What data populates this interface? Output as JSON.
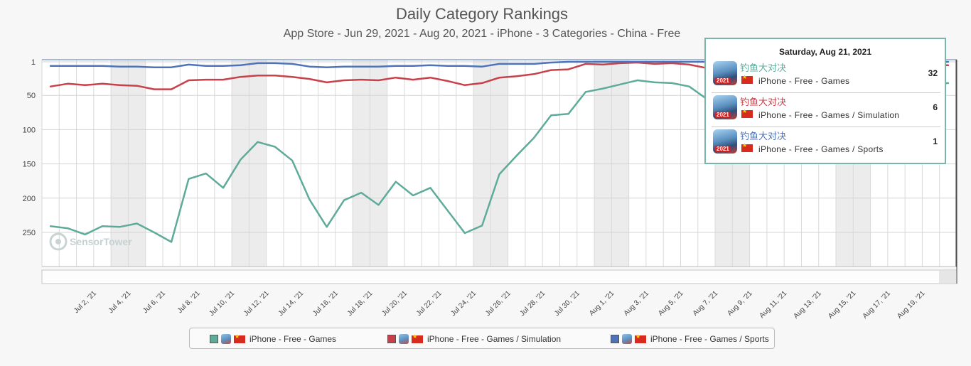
{
  "chart_data": {
    "type": "line",
    "title": "Daily Category Rankings",
    "subtitle": "App Store - Jun 29, 2021 - Aug 20, 2021 - iPhone - 3 Categories - China - Free",
    "y_reversed": true,
    "ylim": [
      1,
      300
    ],
    "y_ticks": [
      1,
      50,
      100,
      150,
      200,
      250
    ],
    "x_tick_labels": [
      "Jul 2, '21",
      "Jul 4, '21",
      "Jul 6, '21",
      "Jul 8, '21",
      "Jul 10, '21",
      "Jul 12, '21",
      "Jul 14, '21",
      "Jul 16, '21",
      "Jul 18, '21",
      "Jul 20, '21",
      "Jul 22, '21",
      "Jul 24, '21",
      "Jul 26, '21",
      "Jul 28, '21",
      "Jul 30, '21",
      "Aug 1, '21",
      "Aug 3, '21",
      "Aug 5, '21",
      "Aug 7, '21",
      "Aug 9, '21",
      "Aug 11, '21",
      "Aug 13, '21",
      "Aug 15, '21",
      "Aug 17, '21",
      "Aug 19, '21"
    ],
    "x_start": "Jun 29, '21",
    "x_end": "Aug 21, '21",
    "grid": true,
    "series": [
      {
        "name": "iPhone - Free - Games",
        "color": "#5fab9a",
        "values": [
          241,
          244,
          253,
          241,
          242,
          237,
          250,
          264,
          172,
          164,
          185,
          144,
          118,
          125,
          145,
          202,
          242,
          203,
          192,
          210,
          176,
          196,
          185,
          218,
          251,
          240,
          165,
          138,
          112,
          79,
          77,
          45,
          40,
          34,
          28,
          31,
          32,
          37,
          55,
          70,
          85,
          83,
          62,
          55,
          50,
          48,
          45,
          42,
          40,
          38,
          36,
          34,
          32
        ]
      },
      {
        "name": "iPhone - Free - Games / Simulation",
        "color": "#c8404a",
        "values": [
          37,
          33,
          35,
          33,
          35,
          36,
          41,
          41,
          28,
          27,
          27,
          23,
          21,
          21,
          23,
          26,
          31,
          28,
          27,
          28,
          24,
          27,
          24,
          29,
          35,
          32,
          24,
          22,
          19,
          13,
          12,
          4,
          5,
          3,
          2,
          4,
          3,
          5,
          10,
          14,
          18,
          17,
          12,
          10,
          9,
          8,
          8,
          7,
          7,
          6,
          6,
          6,
          6
        ]
      },
      {
        "name": "iPhone - Free - Games / Sports",
        "color": "#4f73b8",
        "values": [
          7,
          7,
          7,
          7,
          8,
          8,
          9,
          9,
          5,
          7,
          7,
          6,
          3,
          3,
          4,
          8,
          9,
          8,
          8,
          8,
          7,
          7,
          6,
          7,
          7,
          8,
          4,
          4,
          4,
          2,
          1,
          1,
          1,
          1,
          1,
          1,
          1,
          1,
          1,
          1,
          1,
          1,
          1,
          1,
          1,
          1,
          1,
          1,
          1,
          1,
          1,
          1,
          1
        ]
      }
    ]
  },
  "watermark": "SensorTower",
  "tooltip": {
    "date": "Saturday, Aug 21, 2021",
    "rows": [
      {
        "app": "钓鱼大对决",
        "category": "iPhone - Free - Games",
        "rank": "32",
        "color": "#5fab9a"
      },
      {
        "app": "钓鱼大对决",
        "category": "iPhone - Free - Games / Simulation",
        "rank": "6",
        "color": "#c8404a"
      },
      {
        "app": "钓鱼大对决",
        "category": "iPhone - Free - Games / Sports",
        "rank": "1",
        "color": "#4f73b8"
      }
    ]
  },
  "legend": [
    {
      "label": "iPhone - Free - Games",
      "color": "#5fab9a"
    },
    {
      "label": "iPhone - Free - Games / Simulation",
      "color": "#c8404a"
    },
    {
      "label": "iPhone - Free - Games / Sports",
      "color": "#4f73b8"
    }
  ]
}
